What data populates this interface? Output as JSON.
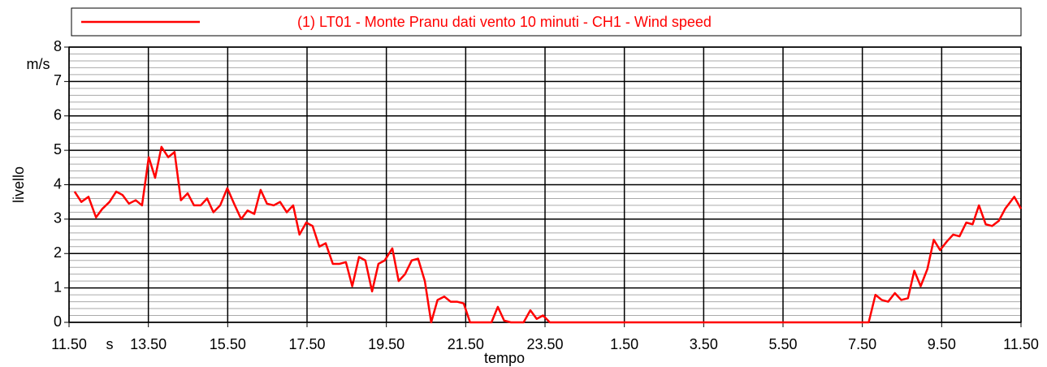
{
  "chart_data": {
    "type": "line",
    "legend": "top",
    "ylabel": "livello",
    "yunit": "m/s",
    "xlabel": "tempo",
    "xunit": "s",
    "grid": true,
    "minor_divisions": 5,
    "xlim": [
      0,
      24
    ],
    "xticks": [
      {
        "value": 0,
        "label": "11.50"
      },
      {
        "value": 2,
        "label": "13.50"
      },
      {
        "value": 4,
        "label": "15.50"
      },
      {
        "value": 6,
        "label": "17.50"
      },
      {
        "value": 8,
        "label": "19.50"
      },
      {
        "value": 10,
        "label": "21.50"
      },
      {
        "value": 12,
        "label": "23.50"
      },
      {
        "value": 14,
        "label": "1.50"
      },
      {
        "value": 16,
        "label": "3.50"
      },
      {
        "value": 18,
        "label": "5.50"
      },
      {
        "value": 20,
        "label": "7.50"
      },
      {
        "value": 22,
        "label": "9.50"
      },
      {
        "value": 24,
        "label": "11.50"
      }
    ],
    "ylim": [
      0,
      8
    ],
    "yticks": [
      0,
      1,
      2,
      3,
      4,
      5,
      6,
      7,
      8
    ],
    "x": [
      0.14,
      0.31,
      0.49,
      0.68,
      0.84,
      1.02,
      1.19,
      1.35,
      1.51,
      1.68,
      1.84,
      2.01,
      2.17,
      2.33,
      2.5,
      2.66,
      2.82,
      2.99,
      3.15,
      3.32,
      3.48,
      3.64,
      3.81,
      3.99,
      4.16,
      4.34,
      4.5,
      4.67,
      4.83,
      4.99,
      5.16,
      5.32,
      5.49,
      5.65,
      5.81,
      5.98,
      6.14,
      6.31,
      6.47,
      6.65,
      6.82,
      6.98,
      7.14,
      7.31,
      7.47,
      7.64,
      7.8,
      7.96,
      8.15,
      8.31,
      8.47,
      8.64,
      8.8,
      8.97,
      9.13,
      9.29,
      9.46,
      9.62,
      9.78,
      9.95,
      10.11,
      10.28,
      10.65,
      10.81,
      10.97,
      11.14,
      11.46,
      11.63,
      11.79,
      11.95,
      12.12,
      20.16,
      20.33,
      20.49,
      20.65,
      20.82,
      20.98,
      21.15,
      21.31,
      21.47,
      21.64,
      21.8,
      21.96,
      22.13,
      22.29,
      22.45,
      22.62,
      22.78,
      22.94,
      23.11,
      23.27,
      23.44,
      23.6,
      23.83,
      24
    ],
    "series": [
      {
        "name": "(1) LT01 - Monte Pranu dati vento 10 minuti - CH1 - Wind speed",
        "color": "#ff0000",
        "values": [
          3.8,
          3.5,
          3.65,
          3.05,
          3.3,
          3.5,
          3.8,
          3.7,
          3.45,
          3.55,
          3.4,
          4.8,
          4.2,
          5.1,
          4.8,
          4.95,
          3.55,
          3.75,
          3.4,
          3.4,
          3.6,
          3.2,
          3.4,
          3.9,
          3.45,
          3.0,
          3.25,
          3.15,
          3.85,
          3.45,
          3.4,
          3.5,
          3.2,
          3.4,
          2.55,
          2.9,
          2.8,
          2.2,
          2.3,
          1.7,
          1.7,
          1.75,
          1.05,
          1.9,
          1.8,
          0.9,
          1.7,
          1.8,
          2.15,
          1.2,
          1.4,
          1.8,
          1.85,
          1.2,
          0.0,
          0.65,
          0.75,
          0.6,
          0.6,
          0.55,
          0.0,
          0.0,
          0.0,
          0.45,
          0.05,
          0.0,
          0.0,
          0.35,
          0.1,
          0.2,
          0.0,
          0.0,
          0.8,
          0.65,
          0.6,
          0.85,
          0.65,
          0.7,
          1.5,
          1.05,
          1.55,
          2.4,
          2.1,
          2.35,
          2.55,
          2.5,
          2.9,
          2.85,
          3.4,
          2.85,
          2.8,
          2.95,
          3.3,
          3.65,
          3.3
        ]
      }
    ]
  }
}
